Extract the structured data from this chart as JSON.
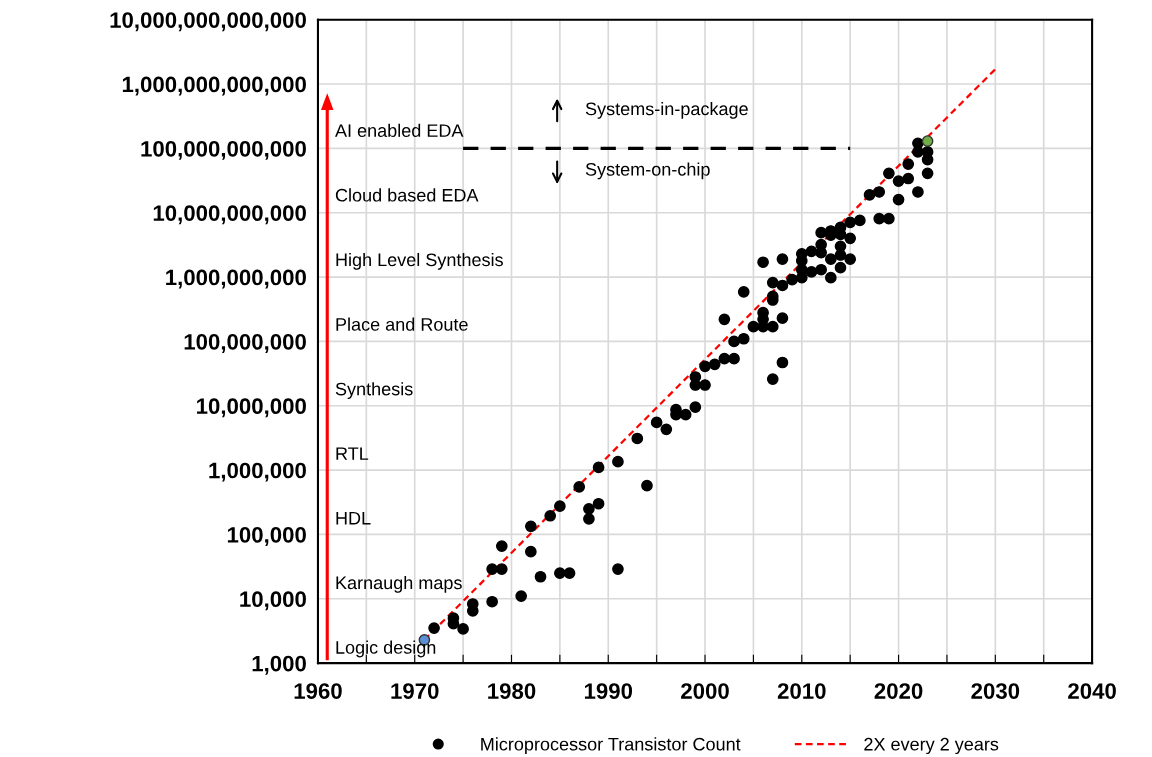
{
  "chart_data": {
    "type": "scatter",
    "grid": true,
    "legend": "bottom",
    "log": "y",
    "xlim": [
      1960,
      2040
    ],
    "xticks": [
      1960,
      {
        "value": 1965,
        "label": null
      },
      1970,
      {
        "value": 1975,
        "label": null
      },
      1980,
      {
        "value": 1985,
        "label": null
      },
      1990,
      {
        "value": 1995,
        "label": null
      },
      2000,
      {
        "value": 2005,
        "label": null
      },
      2010,
      {
        "value": 2015,
        "label": null
      },
      2020,
      {
        "value": 2025,
        "label": null
      },
      2030,
      {
        "value": 2035,
        "label": null
      },
      2040
    ],
    "ylim": [
      1000,
      10000000000000
    ],
    "yticks": [
      {
        "value": 1000,
        "label": "1,000"
      },
      {
        "value": 10000,
        "label": "10,000"
      },
      {
        "value": 100000,
        "label": "100,000"
      },
      {
        "value": 1000000,
        "label": "1,000,000"
      },
      {
        "value": 10000000,
        "label": "10,000,000"
      },
      {
        "value": 100000000,
        "label": "100,000,000"
      },
      {
        "value": 1000000000,
        "label": "1,000,000,000"
      },
      {
        "value": 10000000000,
        "label": "10,000,000,000"
      },
      {
        "value": 100000000000,
        "label": "100,000,000,000"
      },
      {
        "value": 1000000000000,
        "label": "1,000,000,000,000"
      },
      {
        "value": 10000000000000,
        "label": "10,000,000,000,000"
      }
    ],
    "annotations": [
      "Logic design",
      "Karnaugh maps",
      "HDL",
      "RTL",
      "Synthesis",
      "Place and Route",
      "High Level Synthesis",
      "Cloud based EDA",
      "AI enabled EDA",
      "Systems-in-package",
      "System-on-chip"
    ],
    "series": [
      {
        "type": "line",
        "marker": "none",
        "color": "#000000",
        "line_style": "dashed",
        "x": [
          1975,
          2015
        ],
        "values": [
          100000000000,
          100000000000
        ]
      },
      {
        "name": "Microprocessor Transistor Count",
        "marker": "circle",
        "color": "#000000",
        "x": [
          1972,
          1974,
          1974,
          1975,
          1976,
          1976,
          1978,
          1978,
          1979,
          1979,
          1981,
          1982,
          1982,
          1983,
          1984,
          1985,
          1985,
          1986,
          1987,
          1988,
          1988,
          1989,
          1989,
          1991,
          1991,
          1993,
          1994,
          1995,
          1996,
          1997,
          1997,
          1998,
          1999,
          1999,
          1999,
          2000,
          2000,
          2001,
          2002,
          2002,
          2003,
          2003,
          2004,
          2004,
          2005,
          2006,
          2006,
          2006,
          2006,
          2007,
          2007,
          2007,
          2007,
          2007,
          2008,
          2008,
          2008,
          2008,
          2009,
          2010,
          2010,
          2010,
          2010,
          2011,
          2011,
          2012,
          2012,
          2012,
          2012,
          2013,
          2013,
          2013,
          2013,
          2014,
          2014,
          2014,
          2014,
          2014,
          2015,
          2015,
          2015,
          2016,
          2017,
          2018,
          2018,
          2019,
          2019,
          2020,
          2020,
          2021,
          2021,
          2022,
          2022,
          2022,
          2023,
          2023,
          2023
        ],
        "values": [
          3500,
          5000,
          4100,
          3400,
          8300,
          6500,
          9000,
          29000,
          29000,
          66000,
          11000,
          54000,
          134000,
          22000,
          195000,
          275000,
          25000,
          25000,
          550000,
          250000,
          175000,
          300000,
          1100000,
          1350000,
          29000,
          3100000,
          575000,
          5500000,
          4300000,
          8700000,
          7300000,
          7300000,
          9500000,
          28000000,
          21000000,
          21000000,
          41000000,
          44000000,
          54000000,
          220000000,
          54000000,
          100000000,
          110000000,
          590000000,
          170000000,
          170000000,
          220000000,
          280000000,
          1700000000,
          170000000,
          440000000,
          500000000,
          820000000,
          26000000,
          47000000,
          230000000,
          740000000,
          1900000000,
          910000000,
          980000000,
          1300000000,
          1800000000,
          2300000000,
          1200000000,
          2500000000,
          1300000000,
          2400000000,
          3200000000,
          4900000000,
          980000000,
          1900000000,
          4500000000,
          5200000000,
          1400000000,
          2200000000,
          3000000000,
          4600000000,
          5900000000,
          1900000000,
          4000000000,
          7100000000,
          7600000000,
          19000000000,
          21000000000,
          8100000000,
          8100000000,
          41000000000,
          31000000000,
          16000000000,
          34000000000,
          57000000000,
          21000000000,
          88000000000,
          120000000000,
          88000000000,
          67000000000,
          41000000000
        ]
      },
      {
        "marker": "circle",
        "color": "#5b8fd6",
        "x": [
          1971
        ],
        "values": [
          2300
        ]
      },
      {
        "marker": "circle",
        "color": "#70ad47",
        "x": [
          2023
        ],
        "values": [
          130000000000
        ]
      },
      {
        "type": "line",
        "marker": "none",
        "name": "2X every 2 years",
        "color": "#ff0000",
        "line_style": "dashed",
        "x": [
          1971,
          2030
        ],
        "values": [
          2300,
          1700000000000
        ]
      }
    ]
  }
}
